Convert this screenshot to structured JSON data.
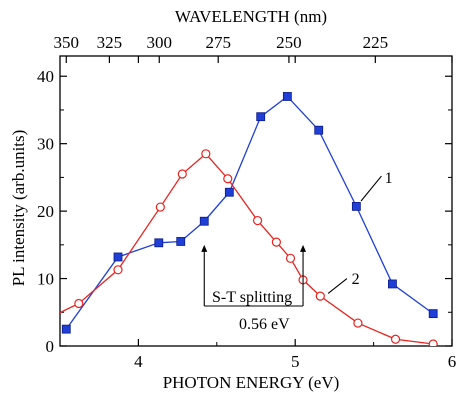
{
  "chart_data": {
    "type": "line",
    "xlabel": "PHOTON ENERGY (eV)",
    "ylabel": "PL intensity (arb.units)",
    "top_axis_label": "WAVELENGTH (nm)",
    "xlim": [
      3.5,
      6
    ],
    "ylim": [
      0,
      43
    ],
    "x_ticks": [
      4,
      5,
      6
    ],
    "y_ticks": [
      0,
      10,
      20,
      30,
      40
    ],
    "top_ticks": [
      {
        "label": "350",
        "energy_ev": 3.54
      },
      {
        "label": "325",
        "energy_ev": 3.815
      },
      {
        "label": "300",
        "energy_ev": 4.133
      },
      {
        "label": "275",
        "energy_ev": 4.509
      },
      {
        "label": "250",
        "energy_ev": 4.96
      },
      {
        "label": "225",
        "energy_ev": 5.511
      }
    ],
    "grid": false,
    "series": [
      {
        "name": "1",
        "marker": "filled-square",
        "color": "#1f3fd6",
        "x": [
          3.54,
          3.87,
          4.13,
          4.27,
          4.42,
          4.58,
          4.78,
          4.95,
          5.15,
          5.39,
          5.62,
          5.88
        ],
        "y": [
          2.5,
          13.2,
          15.3,
          15.5,
          18.5,
          22.8,
          34.0,
          37.0,
          32.0,
          20.7,
          9.2,
          4.8
        ]
      },
      {
        "name": "2",
        "marker": "open-circle",
        "color": "#e8231f",
        "x": [
          3.62,
          3.87,
          4.14,
          4.28,
          4.43,
          4.57,
          4.76,
          4.88,
          4.97,
          5.05,
          5.16,
          5.4,
          5.64,
          5.88
        ],
        "y": [
          6.3,
          11.3,
          20.6,
          25.5,
          28.5,
          24.8,
          18.6,
          15.4,
          13.0,
          9.8,
          7.4,
          3.4,
          1.0,
          0.3
        ]
      }
    ],
    "annotations": [
      {
        "text": "S-T splitting",
        "x_from": 4.42,
        "x_to": 5.05
      },
      {
        "text": "0.56 eV"
      }
    ]
  }
}
